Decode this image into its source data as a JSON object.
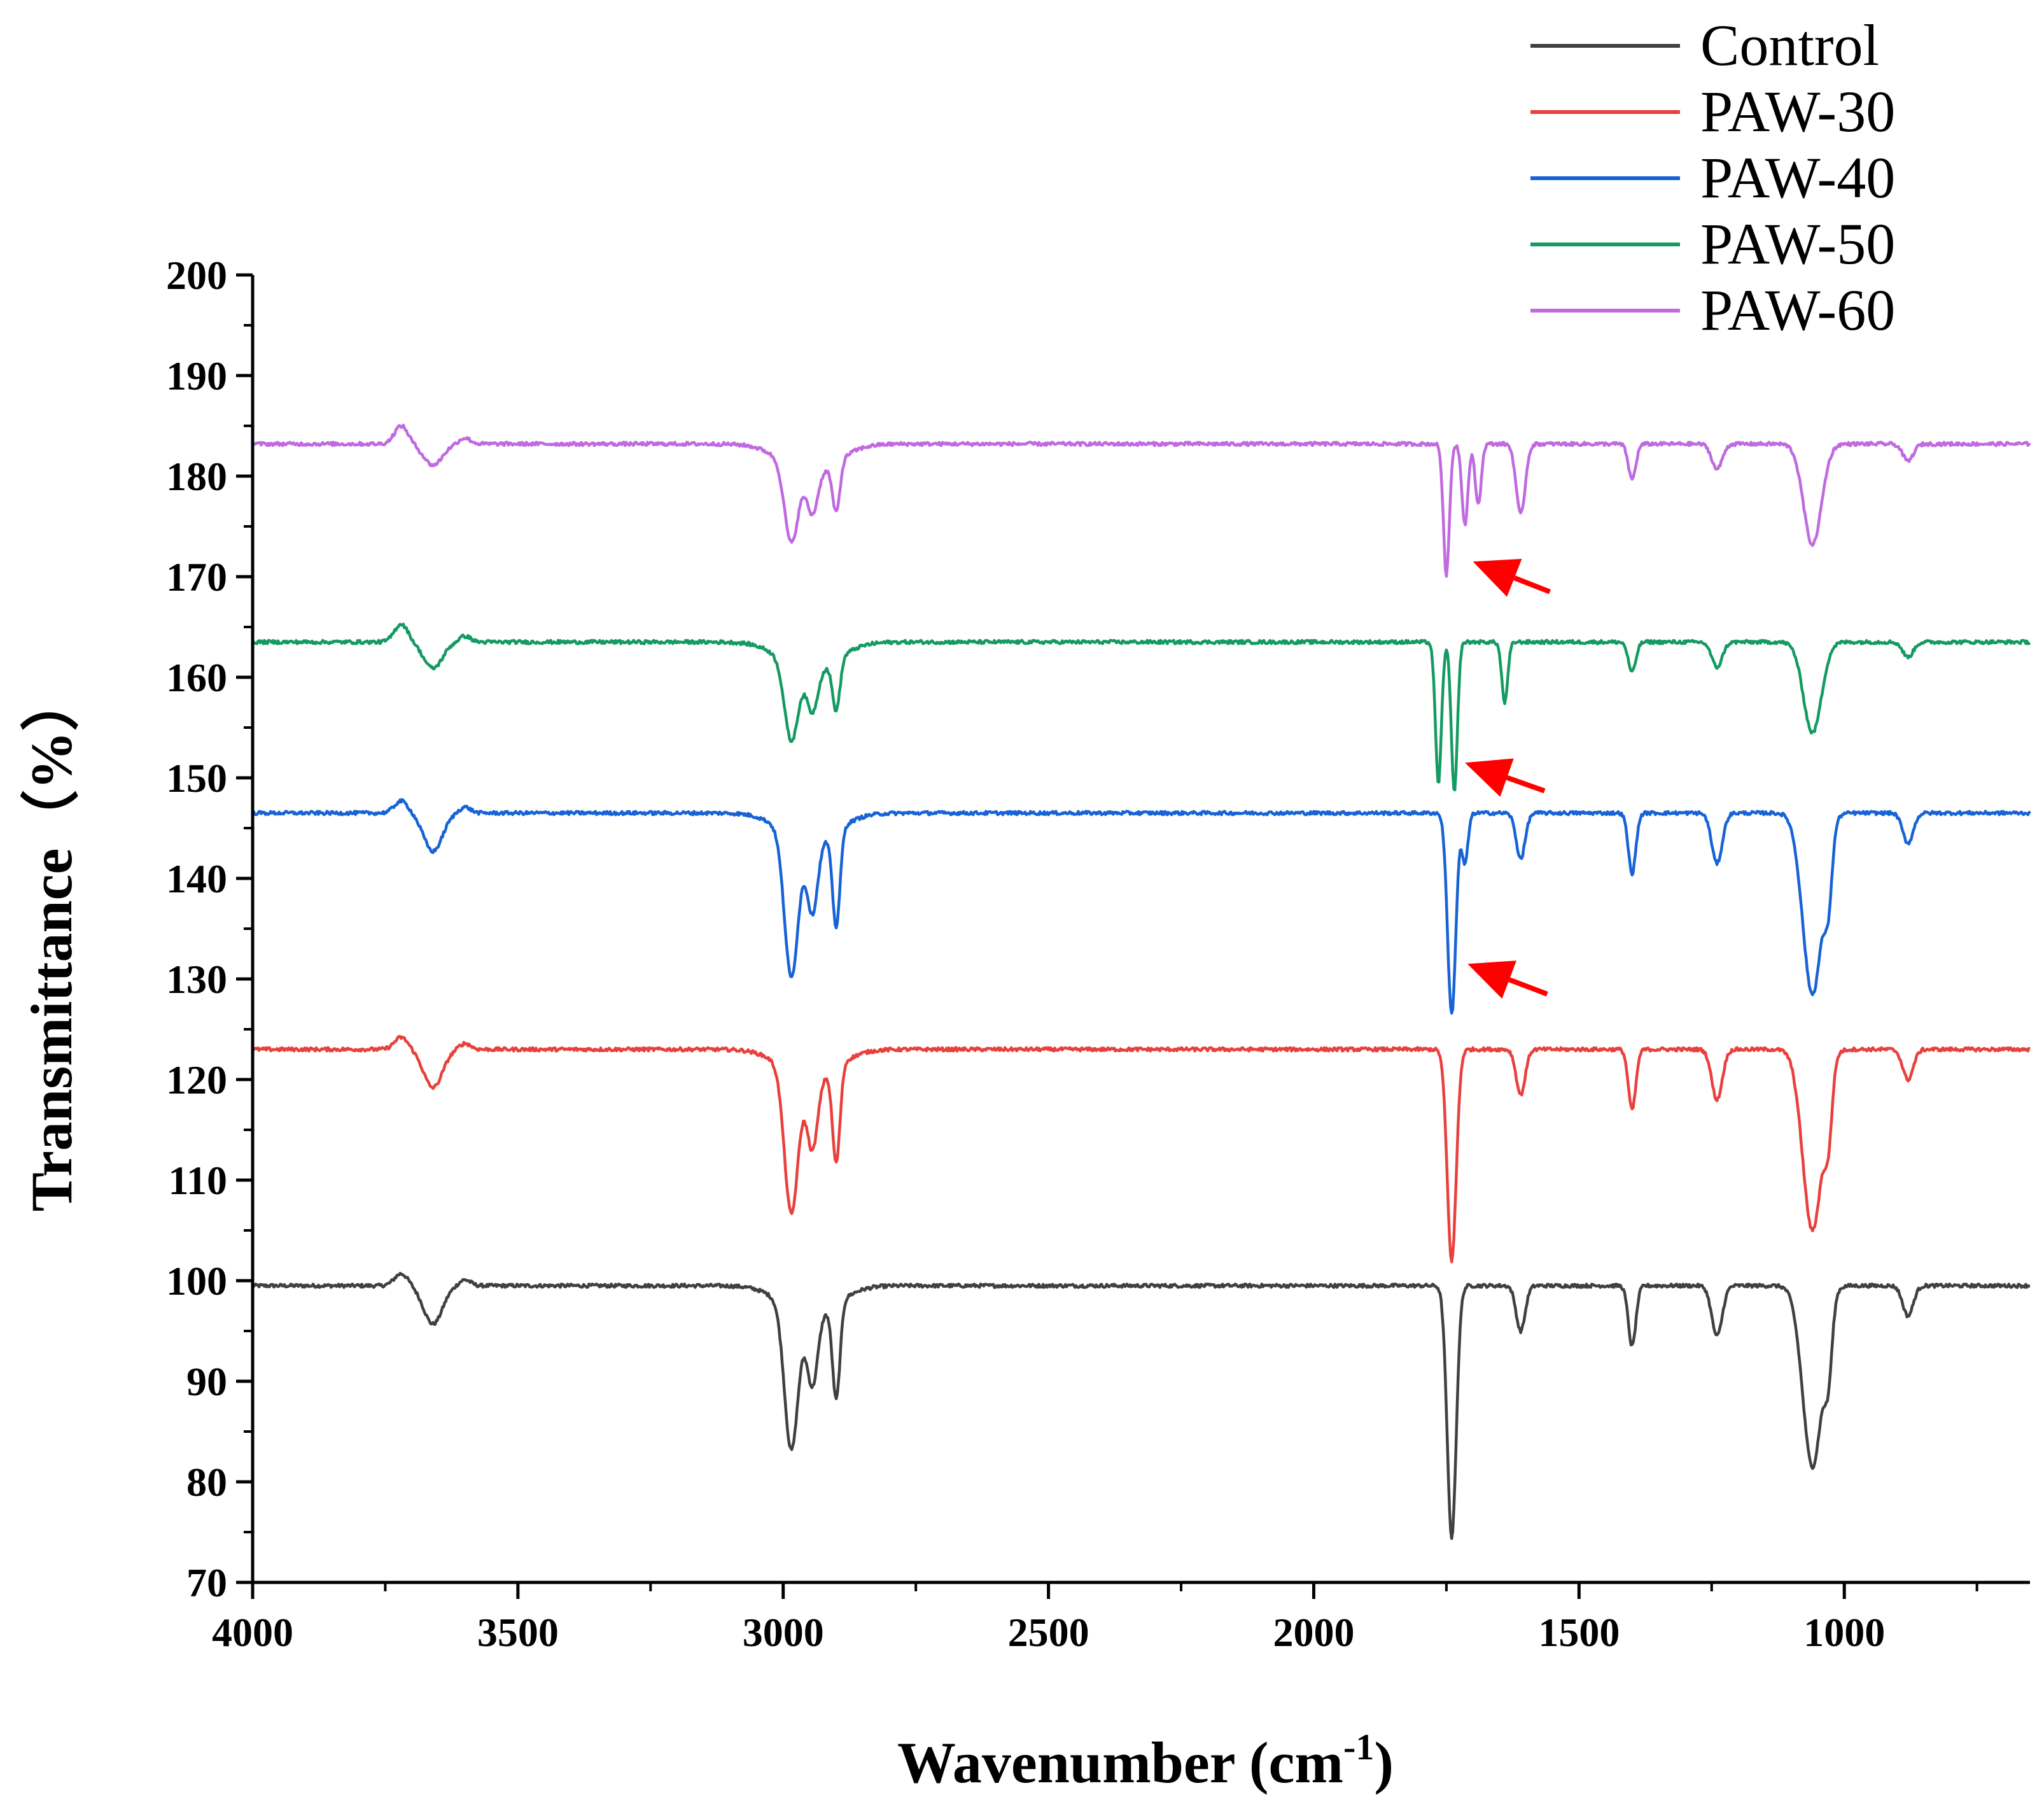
{
  "chart_data": {
    "type": "line",
    "xlabel": "Wavenumber (cm",
    "xlabel_sup": "-1",
    "xlabel_close": ")",
    "ylabel": "Transmittance（%）",
    "xlim": [
      4000,
      650
    ],
    "ylim": [
      70,
      200
    ],
    "xticks": [
      4000,
      3500,
      3000,
      2500,
      2000,
      1500,
      1000
    ],
    "yticks": [
      70,
      80,
      90,
      100,
      110,
      120,
      130,
      140,
      150,
      160,
      170,
      180,
      190,
      200
    ],
    "legend_position": "top-right",
    "series": [
      {
        "name": "Control",
        "color": "#404040",
        "baseline": 99.5,
        "features": [
          [
            3720,
            1.2,
            18
          ],
          [
            3660,
            -3.8,
            25
          ],
          [
            3600,
            0.6,
            15
          ],
          [
            2985,
            -14,
            18
          ],
          [
            2945,
            -7,
            14
          ],
          [
            2900,
            -9.5,
            10
          ],
          [
            1740,
            -25,
            12
          ],
          [
            1610,
            -4.5,
            12
          ],
          [
            1400,
            -6,
            10
          ],
          [
            1240,
            -5,
            14
          ],
          [
            1060,
            -18,
            26
          ],
          [
            1030,
            -6,
            10
          ],
          [
            880,
            -3,
            14
          ]
        ]
      },
      {
        "name": "PAW-30",
        "color": "#e8413d",
        "baseline": 123,
        "features": [
          [
            3720,
            1.2,
            18
          ],
          [
            3660,
            -3.8,
            25
          ],
          [
            3600,
            0.6,
            15
          ],
          [
            2985,
            -14,
            18
          ],
          [
            2945,
            -7,
            14
          ],
          [
            2900,
            -9.5,
            10
          ],
          [
            1740,
            -21,
            12
          ],
          [
            1610,
            -4.5,
            12
          ],
          [
            1400,
            -6,
            10
          ],
          [
            1240,
            -5,
            14
          ],
          [
            1060,
            -18,
            26
          ],
          [
            1030,
            -6,
            10
          ],
          [
            880,
            -3,
            14
          ]
        ]
      },
      {
        "name": "PAW-40",
        "color": "#1763d6",
        "baseline": 146.5,
        "features": [
          [
            3720,
            1.2,
            18
          ],
          [
            3660,
            -3.8,
            25
          ],
          [
            3600,
            0.6,
            15
          ],
          [
            2985,
            -14,
            18
          ],
          [
            2945,
            -7,
            14
          ],
          [
            2900,
            -9.5,
            10
          ],
          [
            1740,
            -20,
            11
          ],
          [
            1715,
            -5,
            8
          ],
          [
            1610,
            -4.5,
            12
          ],
          [
            1400,
            -6,
            10
          ],
          [
            1240,
            -5,
            14
          ],
          [
            1060,
            -18,
            26
          ],
          [
            1030,
            -6,
            10
          ],
          [
            880,
            -3,
            14
          ]
        ]
      },
      {
        "name": "PAW-50",
        "color": "#159a63",
        "baseline": 163.5,
        "features": [
          [
            3720,
            1.8,
            18
          ],
          [
            3660,
            -2.6,
            25
          ],
          [
            3600,
            0.6,
            15
          ],
          [
            2985,
            -7.5,
            18
          ],
          [
            2945,
            -4,
            14
          ],
          [
            2900,
            -5,
            10
          ],
          [
            1765,
            -14,
            8
          ],
          [
            1735,
            -15,
            8
          ],
          [
            1640,
            -6,
            8
          ],
          [
            1400,
            -3,
            10
          ],
          [
            1240,
            -2.5,
            14
          ],
          [
            1060,
            -9,
            24
          ],
          [
            880,
            -1.5,
            14
          ]
        ]
      },
      {
        "name": "PAW-60",
        "color": "#c06ae0",
        "baseline": 183.2,
        "features": [
          [
            3720,
            1.8,
            18
          ],
          [
            3660,
            -2.1,
            25
          ],
          [
            3600,
            0.6,
            15
          ],
          [
            2985,
            -7.5,
            18
          ],
          [
            2945,
            -4,
            14
          ],
          [
            2900,
            -5,
            10
          ],
          [
            1750,
            -13,
            8
          ],
          [
            1715,
            -8,
            8
          ],
          [
            1690,
            -6,
            8
          ],
          [
            1610,
            -7,
            12
          ],
          [
            1400,
            -3.5,
            10
          ],
          [
            1240,
            -2.5,
            14
          ],
          [
            1060,
            -10,
            24
          ],
          [
            880,
            -1.7,
            14
          ]
        ]
      }
    ],
    "annotations": [
      {
        "type": "arrow",
        "color": "#ff0000",
        "from": [
          1555,
          168.5
        ],
        "to": [
          1700,
          171.5
        ]
      },
      {
        "type": "arrow",
        "color": "#ff0000",
        "from": [
          1565,
          148.7
        ],
        "to": [
          1715,
          151.5
        ]
      },
      {
        "type": "arrow",
        "color": "#ff0000",
        "from": [
          1560,
          128.5
        ],
        "to": [
          1710,
          131.5
        ]
      }
    ]
  }
}
